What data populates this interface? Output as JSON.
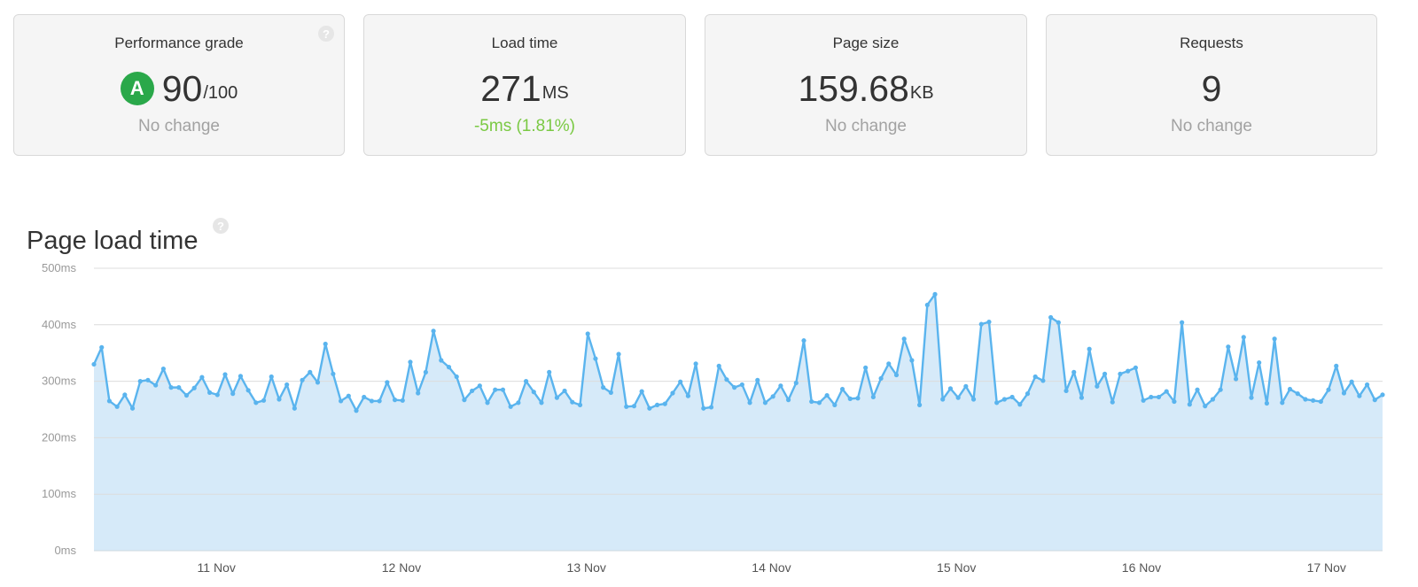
{
  "cards": [
    {
      "title": "Performance grade",
      "grade": "A",
      "value": "90",
      "unit": "/100",
      "change": "No change"
    },
    {
      "title": "Load time",
      "value": "271",
      "unit": "MS",
      "change": "-5ms (1.81%)"
    },
    {
      "title": "Page size",
      "value": "159.68",
      "unit": "KB",
      "change": "No change"
    },
    {
      "title": "Requests",
      "value": "9",
      "unit": "",
      "change": "No change"
    }
  ],
  "help_icon": "question-circle-icon",
  "help_glyph": "?",
  "section_title": "Page load time",
  "colors": {
    "grade_badge": "#2aa84a",
    "positive_change": "#7ac943",
    "line": "#5ab4ee",
    "area_fill": "#d6eaf9"
  },
  "chart_data": {
    "type": "area",
    "title": "Page load time",
    "grid": true,
    "ylim": [
      0,
      500
    ],
    "y_ticks": [
      0,
      100,
      200,
      300,
      400,
      500
    ],
    "y_tick_labels": [
      "0ms",
      "100ms",
      "200ms",
      "300ms",
      "400ms",
      "500ms"
    ],
    "x_tick_labels": [
      "11 Nov",
      "12 Nov",
      "13 Nov",
      "14 Nov",
      "15 Nov",
      "16 Nov",
      "17 Nov"
    ],
    "x_tick_positions": [
      0.662,
      1.662,
      2.662,
      3.662,
      4.662,
      5.662,
      6.662
    ],
    "xlim": [
      0,
      6.965
    ],
    "series": [
      {
        "values": [
          330,
          360,
          265,
          255,
          276,
          252,
          300,
          302,
          293,
          322,
          289,
          289,
          275,
          288,
          307,
          280,
          276,
          312,
          278,
          309,
          284,
          262,
          266,
          308,
          268,
          294,
          252,
          302,
          316,
          298,
          366,
          313,
          265,
          274,
          248,
          272,
          265,
          265,
          298,
          267,
          266,
          334,
          279,
          316,
          389,
          337,
          325,
          308,
          267,
          283,
          292,
          262,
          285,
          285,
          255,
          262,
          300,
          281,
          262,
          316,
          271,
          283,
          263,
          258,
          384,
          340,
          289,
          280,
          348,
          255,
          256,
          282,
          252,
          258,
          260,
          279,
          299,
          274,
          331,
          252,
          254,
          327,
          303,
          289,
          294,
          262,
          302,
          262,
          273,
          292,
          267,
          297,
          372,
          264,
          262,
          275,
          258,
          286,
          269,
          270,
          324,
          272,
          305,
          331,
          311,
          375,
          337,
          258,
          435,
          454,
          268,
          287,
          271,
          291,
          268,
          401,
          405,
          262,
          268,
          272,
          259,
          278,
          308,
          301,
          413,
          404,
          283,
          316,
          271,
          357,
          291,
          313,
          263,
          313,
          318,
          324,
          266,
          272,
          272,
          282,
          264,
          404,
          259,
          285,
          256,
          268,
          285,
          361,
          304,
          378,
          271,
          333,
          261,
          375,
          262,
          286,
          278,
          268,
          266,
          264,
          285,
          327,
          279,
          299,
          274,
          294,
          267,
          276
        ]
      }
    ]
  }
}
